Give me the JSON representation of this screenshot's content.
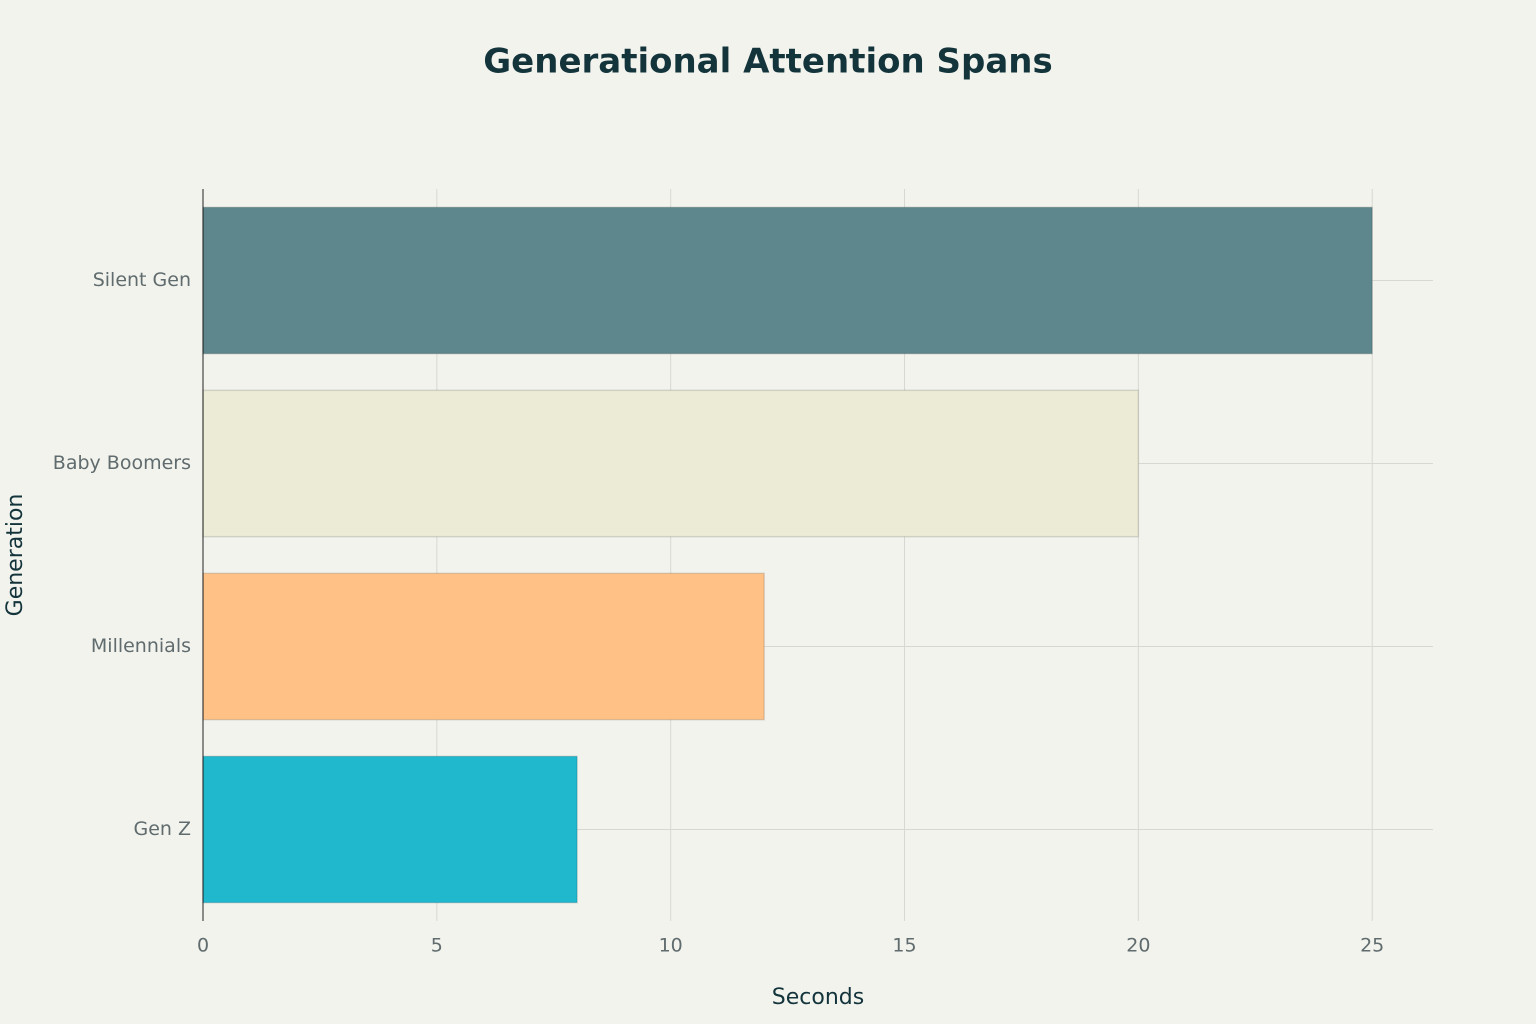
{
  "chart_data": {
    "type": "bar",
    "orientation": "horizontal",
    "title": "Generational Attention Spans",
    "x_label": "Seconds",
    "y_label": "Generation",
    "categories": [
      "Gen Z",
      "Millennials",
      "Baby Boomers",
      "Silent Gen"
    ],
    "values": [
      8,
      12,
      20,
      25
    ],
    "colors": [
      "#1fb8cd",
      "#ffc185",
      "#ecebd5",
      "#5d878c"
    ],
    "xlim": [
      0,
      26.3
    ],
    "xticks": [
      0,
      5,
      10,
      15,
      20,
      25
    ],
    "grid": true
  }
}
